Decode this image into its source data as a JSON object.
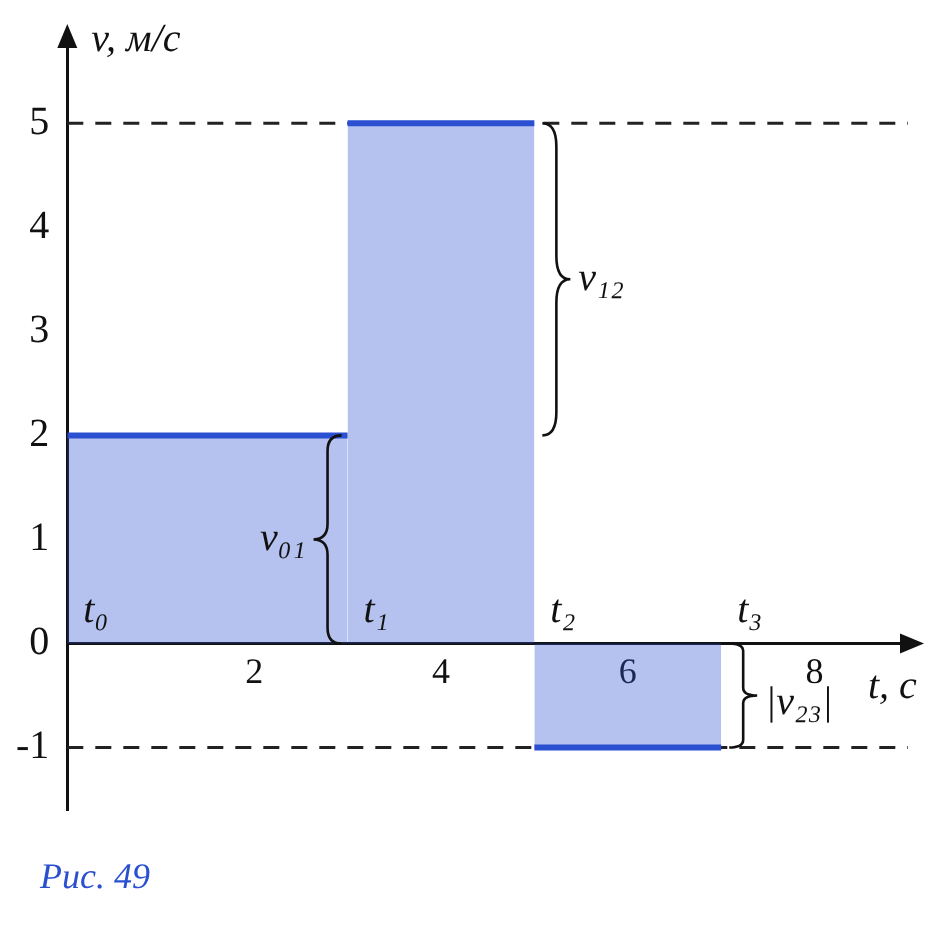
{
  "chart_data": {
    "type": "area",
    "xlabel": "t, с",
    "ylabel": "v, м/с",
    "xlim": [
      0,
      9
    ],
    "ylim": [
      -1.6,
      5.8
    ],
    "xticks": [
      2,
      4,
      6,
      8
    ],
    "yticks": [
      -1,
      0,
      1,
      2,
      3,
      4,
      5
    ],
    "series": [
      {
        "color": "#2a4fd0",
        "x": [
          0,
          3
        ],
        "values": [
          2,
          2
        ]
      },
      {
        "color": "#2a4fd0",
        "x": [
          3,
          5
        ],
        "values": [
          5,
          5
        ]
      },
      {
        "color": "#2a4fd0",
        "x": [
          5,
          7
        ],
        "values": [
          -1,
          -1
        ]
      }
    ],
    "ref_lines": [
      {
        "axis": "y",
        "value": 5,
        "line_style": "dashed",
        "color": "#222222"
      },
      {
        "axis": "y",
        "value": -1,
        "line_style": "dashed",
        "color": "#222222"
      }
    ],
    "annotations": [
      {
        "text": "t₀",
        "x": 0,
        "y": 0
      },
      {
        "text": "t₁",
        "x": 3,
        "y": 0
      },
      {
        "text": "t₂",
        "x": 5,
        "y": 0
      },
      {
        "text": "t₃",
        "x": 7,
        "y": 0
      },
      {
        "text": "v₀₁",
        "x": 3,
        "y": 1
      },
      {
        "text": "v₁₂",
        "x": 5,
        "y": 3.5
      },
      {
        "text": "|v₂₃|",
        "x": 7,
        "y": -0.5
      },
      "Рис. 49"
    ],
    "grid": false,
    "legend": false
  }
}
